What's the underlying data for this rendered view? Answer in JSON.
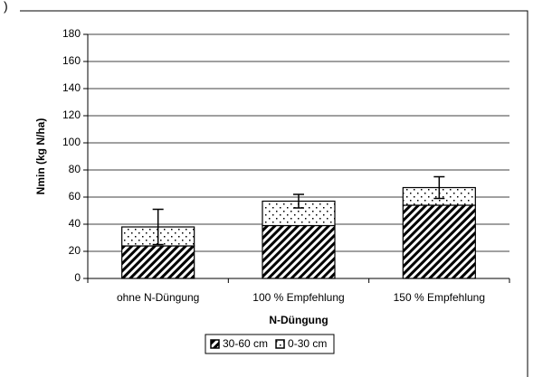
{
  "chart_data": {
    "type": "stacked_bar",
    "panel_label": ")",
    "y_label": "Nmin (kg N/ha)",
    "x_label": "N-Düngung",
    "categories": [
      "ohne N-Düngung",
      "100 % Empfehlung",
      "150 % Empfehlung"
    ],
    "series": [
      {
        "name": "30-60 cm",
        "color": "#000000",
        "pattern": "hatch",
        "values": [
          24,
          39,
          54
        ]
      },
      {
        "name": "0-30 cm",
        "color": "#000000",
        "pattern": "dots",
        "values": [
          14,
          18,
          13
        ],
        "errors": [
          13,
          5,
          8
        ]
      }
    ],
    "ylim": [
      0,
      180
    ],
    "yticks": [
      0,
      20,
      40,
      60,
      80,
      100,
      120,
      140,
      160,
      180
    ],
    "grid": true,
    "legend": "bottom"
  }
}
